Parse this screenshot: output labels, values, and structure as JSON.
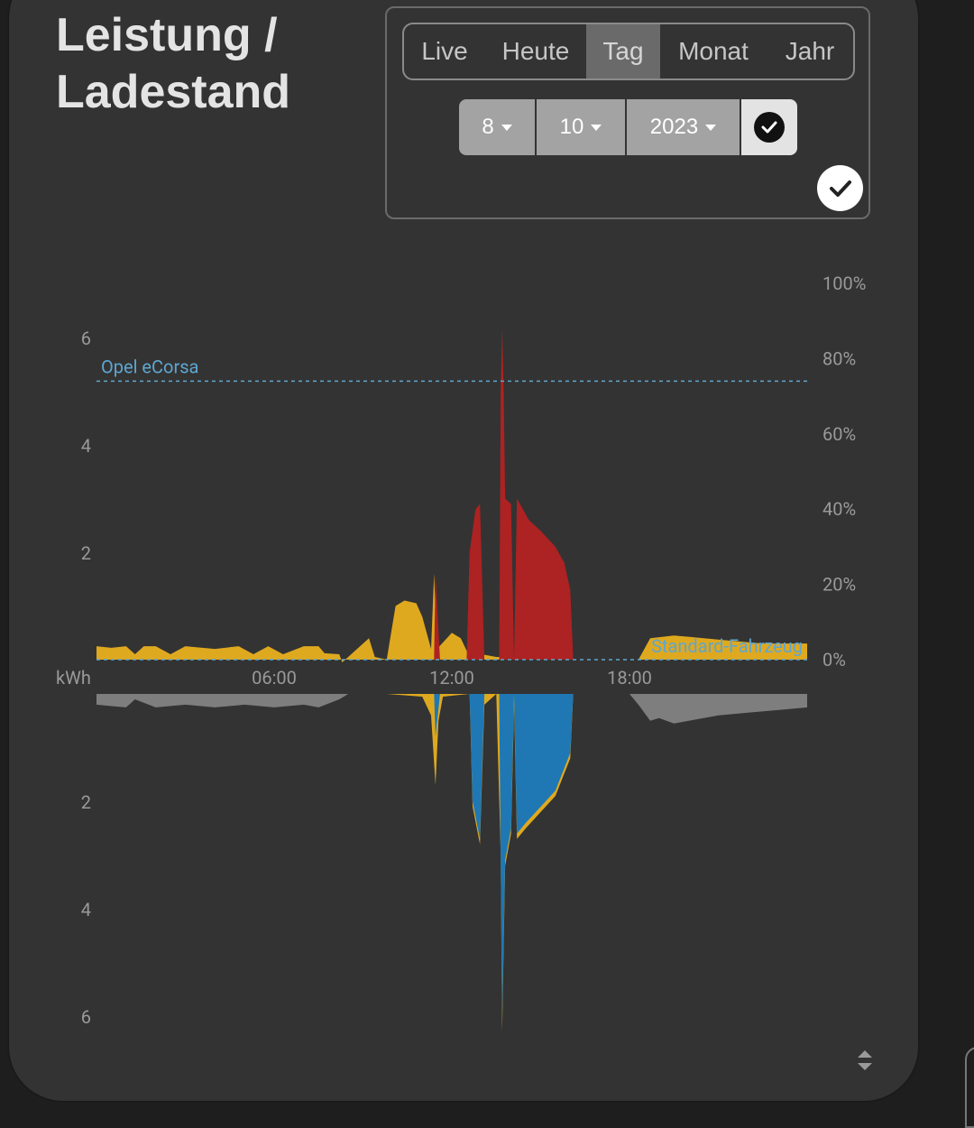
{
  "card": {
    "title_line1": "Leistung /",
    "title_line2": "Ladestand"
  },
  "range_tabs": [
    {
      "label": "Live",
      "active": false
    },
    {
      "label": "Heute",
      "active": false
    },
    {
      "label": "Tag",
      "active": true
    },
    {
      "label": "Monat",
      "active": false
    },
    {
      "label": "Jahr",
      "active": false
    }
  ],
  "date_picker": {
    "day": "8",
    "month": "10",
    "year": "2023"
  },
  "icons": {
    "confirm": "check-circle-icon",
    "confirm_secondary": "check-circle-icon",
    "resize": "resize-handle-icon"
  },
  "colors": {
    "pv": "#dfa91f",
    "grid_import": "#7e7e7e",
    "battery_discharge": "#ad2222",
    "battery_charge": "#1f78b4",
    "vehicle_soc_line": "#5fa6d0",
    "axis_text": "#9a9a9a"
  },
  "chart_data": {
    "type": "area",
    "xlabel": "kWh",
    "x_ticks": [
      "06:00",
      "12:00",
      "18:00"
    ],
    "x_range_hours": [
      0,
      24
    ],
    "y_left_ticks_upper": [
      "6",
      "4",
      "2"
    ],
    "y_left_ticks_lower": [
      "2",
      "4",
      "6"
    ],
    "y_left_range": [
      -6,
      6
    ],
    "y_right_ticks": [
      "100%",
      "80%",
      "60%",
      "40%",
      "20%",
      "0%"
    ],
    "y_right_range": [
      0,
      100
    ],
    "soc_lines": [
      {
        "name": "Opel eCorsa",
        "value_pct": 74
      },
      {
        "name": "Standard-Fahrzeug",
        "value_pct": 0
      }
    ],
    "series": [
      {
        "name": "pv_upper",
        "side": "upper",
        "colorKey": "pv",
        "points": [
          [
            0,
            0.25
          ],
          [
            0.5,
            0.22
          ],
          [
            1,
            0.25
          ],
          [
            1.3,
            0.1
          ],
          [
            1.6,
            0.25
          ],
          [
            2,
            0.25
          ],
          [
            2.5,
            0.1
          ],
          [
            3,
            0.25
          ],
          [
            4,
            0.2
          ],
          [
            4.8,
            0.25
          ],
          [
            5.3,
            0.1
          ],
          [
            5.8,
            0.25
          ],
          [
            6.3,
            0.1
          ],
          [
            7,
            0.25
          ],
          [
            7.5,
            0.25
          ],
          [
            7.7,
            0.12
          ],
          [
            8.2,
            0.1
          ],
          [
            8.3,
            -0.05
          ],
          [
            9.2,
            0.4
          ],
          [
            9.4,
            0.05
          ],
          [
            9.8,
            0
          ],
          [
            10.1,
            1
          ],
          [
            10.4,
            1.1
          ],
          [
            10.8,
            1.05
          ],
          [
            11,
            0.8
          ],
          [
            11.3,
            0.2
          ],
          [
            11.4,
            1.6
          ],
          [
            11.5,
            0.2
          ],
          [
            12,
            0.5
          ],
          [
            12.3,
            0.4
          ],
          [
            12.6,
            0.05
          ],
          [
            12.9,
            0.1
          ],
          [
            13,
            0.1
          ],
          [
            13.5,
            0.05
          ],
          [
            15,
            0.05
          ],
          [
            15.8,
            0.05
          ],
          [
            16,
            0
          ],
          [
            18.3,
            0
          ],
          [
            18.7,
            0.4
          ],
          [
            19.5,
            0.45
          ],
          [
            20.5,
            0.4
          ],
          [
            21.5,
            0.35
          ],
          [
            22.5,
            0.3
          ],
          [
            24,
            0.3
          ]
        ]
      },
      {
        "name": "battery_discharge",
        "side": "upper",
        "colorKey": "battery_discharge",
        "points": [
          [
            11.4,
            0
          ],
          [
            11.45,
            1.6
          ],
          [
            11.6,
            0
          ],
          [
            12.5,
            0
          ],
          [
            12.6,
            2
          ],
          [
            12.8,
            2.8
          ],
          [
            12.95,
            2.9
          ],
          [
            13.1,
            0
          ],
          [
            13.6,
            0
          ],
          [
            13.65,
            5
          ],
          [
            13.7,
            6.2
          ],
          [
            13.75,
            5
          ],
          [
            13.8,
            3
          ],
          [
            14,
            2.9
          ],
          [
            14.1,
            0
          ],
          [
            14.2,
            3
          ],
          [
            14.6,
            2.6
          ],
          [
            15,
            2.4
          ],
          [
            15.5,
            2.1
          ],
          [
            15.8,
            1.8
          ],
          [
            16,
            1.3
          ],
          [
            16.1,
            0
          ]
        ]
      },
      {
        "name": "pv_lower",
        "side": "lower",
        "colorKey": "pv",
        "points": [
          [
            8.5,
            0
          ],
          [
            9.8,
            0
          ],
          [
            11,
            -0.05
          ],
          [
            11.3,
            -0.4
          ],
          [
            11.45,
            -1.7
          ],
          [
            11.55,
            -0.5
          ],
          [
            11.7,
            -0.05
          ],
          [
            12.6,
            0
          ],
          [
            12.7,
            -2.1
          ],
          [
            12.95,
            -2.8
          ],
          [
            13.1,
            -0.2
          ],
          [
            13.5,
            0
          ],
          [
            13.65,
            -3
          ],
          [
            13.7,
            -6.3
          ],
          [
            13.8,
            -3.2
          ],
          [
            14,
            -2.6
          ],
          [
            14.1,
            -0.2
          ],
          [
            14.2,
            -2.7
          ],
          [
            14.5,
            -2.5
          ],
          [
            15,
            -2.2
          ],
          [
            15.5,
            -1.9
          ],
          [
            16,
            -1.2
          ],
          [
            16.1,
            0
          ]
        ]
      },
      {
        "name": "battery_charge",
        "side": "lower",
        "colorKey": "battery_charge",
        "points": [
          [
            11.4,
            0
          ],
          [
            11.45,
            -0.8
          ],
          [
            11.6,
            0
          ],
          [
            12.6,
            0
          ],
          [
            12.7,
            -2
          ],
          [
            12.95,
            -2.7
          ],
          [
            13.1,
            0
          ],
          [
            13.6,
            0
          ],
          [
            13.65,
            -3.2
          ],
          [
            13.7,
            -6.1
          ],
          [
            13.8,
            -3.1
          ],
          [
            14,
            -2.5
          ],
          [
            14.1,
            0
          ],
          [
            14.2,
            -2.6
          ],
          [
            14.5,
            -2.4
          ],
          [
            15,
            -2.1
          ],
          [
            15.5,
            -1.8
          ],
          [
            16,
            -1.1
          ],
          [
            16.1,
            0
          ]
        ]
      },
      {
        "name": "grid_import",
        "side": "lower",
        "colorKey": "grid_import",
        "points": [
          [
            0,
            -0.2
          ],
          [
            1,
            -0.25
          ],
          [
            1.3,
            -0.1
          ],
          [
            2,
            -0.25
          ],
          [
            3,
            -0.2
          ],
          [
            4,
            -0.25
          ],
          [
            5,
            -0.2
          ],
          [
            6,
            -0.25
          ],
          [
            7,
            -0.2
          ],
          [
            7.5,
            -0.25
          ],
          [
            8.2,
            -0.1
          ],
          [
            8.5,
            0
          ],
          [
            18,
            0
          ],
          [
            18.3,
            -0.2
          ],
          [
            18.7,
            -0.5
          ],
          [
            19,
            -0.45
          ],
          [
            19.5,
            -0.55
          ],
          [
            20,
            -0.5
          ],
          [
            21,
            -0.4
          ],
          [
            22,
            -0.35
          ],
          [
            23,
            -0.3
          ],
          [
            24,
            -0.25
          ]
        ]
      }
    ]
  }
}
